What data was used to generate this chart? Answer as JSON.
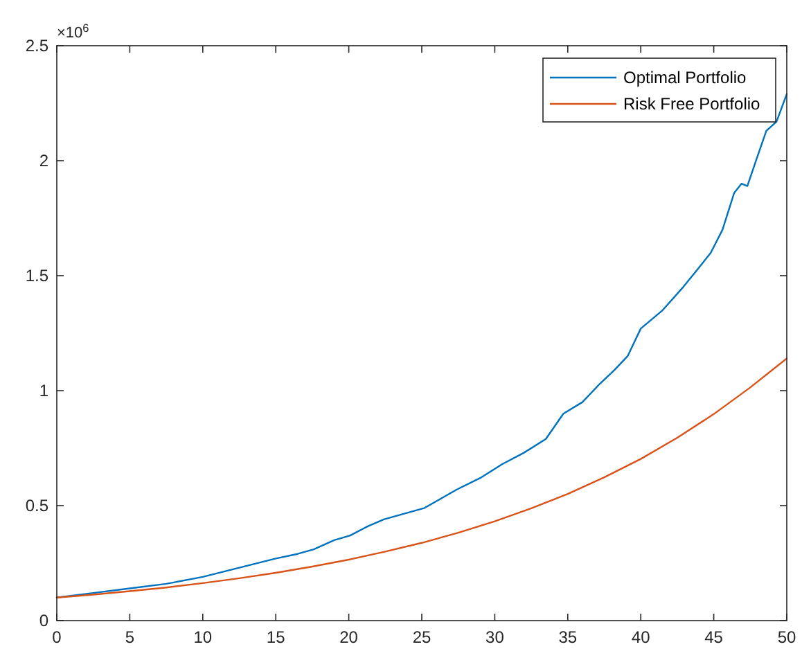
{
  "chart_data": {
    "type": "line",
    "xlim": [
      0,
      50
    ],
    "ylim": [
      0,
      2.5
    ],
    "xticks": [
      0,
      5,
      10,
      15,
      20,
      25,
      30,
      35,
      40,
      45,
      50
    ],
    "yticks": [
      0,
      0.5,
      1,
      1.5,
      2,
      2.5
    ],
    "grid": false,
    "legend": "top right",
    "line_style": "solid",
    "marker": "none",
    "annotations": [
      "×10$^{6}$"
    ],
    "series": [
      {
        "name": "Optimal Portfolio",
        "color": "#0072bd",
        "x": [
          0,
          2.5,
          5,
          7.5,
          10,
          12.5,
          15,
          16.5,
          17.6,
          19,
          20.1,
          21.3,
          22.4,
          23.5,
          25.2,
          26.3,
          27.4,
          29,
          30.5,
          32,
          33.5,
          34.7,
          36,
          37.2,
          38.2,
          39.1,
          40,
          41.5,
          42.9,
          43.8,
          44.8,
          45.6,
          46.4,
          46.9,
          47.3,
          48,
          48.6,
          49.3,
          50
        ],
        "values": [
          0.1,
          0.12,
          0.14,
          0.16,
          0.19,
          0.23,
          0.27,
          0.29,
          0.31,
          0.35,
          0.37,
          0.41,
          0.44,
          0.46,
          0.49,
          0.53,
          0.57,
          0.62,
          0.68,
          0.73,
          0.79,
          0.9,
          0.95,
          1.03,
          1.09,
          1.15,
          1.27,
          1.35,
          1.45,
          1.52,
          1.6,
          1.7,
          1.86,
          1.9,
          1.89,
          2.02,
          2.13,
          2.17,
          2.29
        ]
      },
      {
        "name": "Risk Free Portfolio",
        "color": "#d95319",
        "x": [
          0,
          2.5,
          5,
          7.5,
          10,
          12.5,
          15,
          17.5,
          20,
          22.5,
          25,
          27.5,
          30,
          32.5,
          35,
          37.5,
          40,
          42.5,
          45,
          47.5,
          50
        ],
        "values": [
          0.1,
          0.113,
          0.128,
          0.144,
          0.163,
          0.184,
          0.208,
          0.235,
          0.265,
          0.3,
          0.338,
          0.382,
          0.432,
          0.488,
          0.551,
          0.623,
          0.703,
          0.795,
          0.898,
          1.014,
          1.14
        ]
      }
    ]
  }
}
